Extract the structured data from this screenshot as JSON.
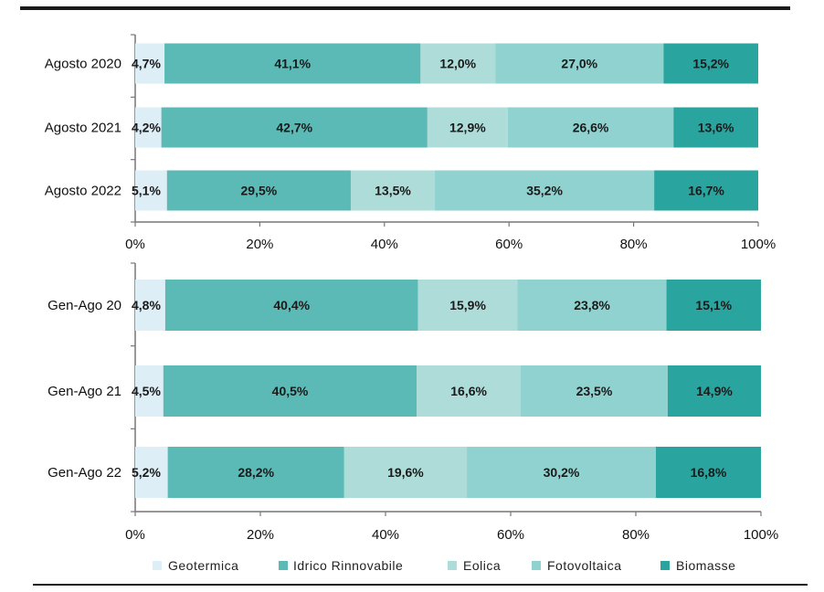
{
  "chart_data": [
    {
      "type": "bar",
      "orientation": "horizontal",
      "stacked": "percent",
      "categories": [
        "Agosto 2020",
        "Agosto 2021",
        "Agosto 2022"
      ],
      "series": [
        {
          "name": "Geotermica",
          "values": [
            4.7,
            4.2,
            5.1
          ],
          "labels": [
            "4,7%",
            "4,2%",
            "5,1%"
          ]
        },
        {
          "name": "Idrico Rinnovabile",
          "values": [
            41.1,
            42.7,
            29.5
          ],
          "labels": [
            "41,1%",
            "42,7%",
            "29,5%"
          ]
        },
        {
          "name": "Eolica",
          "values": [
            12.0,
            12.9,
            13.5
          ],
          "labels": [
            "12,0%",
            "12,9%",
            "13,5%"
          ]
        },
        {
          "name": "Fotovoltaica",
          "values": [
            27.0,
            26.6,
            35.2
          ],
          "labels": [
            "27,0%",
            "26,6%",
            "35,2%"
          ]
        },
        {
          "name": "Biomasse",
          "values": [
            15.2,
            13.6,
            16.7
          ],
          "labels": [
            "15,2%",
            "13,6%",
            "16,7%"
          ]
        }
      ],
      "x_ticks": [
        "0%",
        "20%",
        "40%",
        "60%",
        "80%",
        "100%"
      ],
      "xlim": [
        0,
        100
      ],
      "grid": false
    },
    {
      "type": "bar",
      "orientation": "horizontal",
      "stacked": "percent",
      "categories": [
        "Gen-Ago 20",
        "Gen-Ago 21",
        "Gen-Ago 22"
      ],
      "series": [
        {
          "name": "Geotermica",
          "values": [
            4.8,
            4.5,
            5.2
          ],
          "labels": [
            "4,8%",
            "4,5%",
            "5,2%"
          ]
        },
        {
          "name": "Idrico Rinnovabile",
          "values": [
            40.4,
            40.5,
            28.2
          ],
          "labels": [
            "40,4%",
            "40,5%",
            "28,2%"
          ]
        },
        {
          "name": "Eolica",
          "values": [
            15.9,
            16.6,
            19.6
          ],
          "labels": [
            "15,9%",
            "16,6%",
            "19,6%"
          ]
        },
        {
          "name": "Fotovoltaica",
          "values": [
            23.8,
            23.5,
            30.2
          ],
          "labels": [
            "23,8%",
            "23,5%",
            "30,2%"
          ]
        },
        {
          "name": "Biomasse",
          "values": [
            15.1,
            14.9,
            16.8
          ],
          "labels": [
            "15,1%",
            "14,9%",
            "16,8%"
          ]
        }
      ],
      "x_ticks": [
        "0%",
        "20%",
        "40%",
        "60%",
        "80%",
        "100%"
      ],
      "xlim": [
        0,
        100
      ],
      "grid": false
    }
  ],
  "legend": {
    "placement": "bottom",
    "items": [
      {
        "name": "Geotermica",
        "color": "#ddeef6"
      },
      {
        "name": "Idrico Rinnovabile",
        "color": "#5bbab6"
      },
      {
        "name": "Eolica",
        "color": "#aedcd9"
      },
      {
        "name": "Fotovoltaica",
        "color": "#8fd2cf"
      },
      {
        "name": "Biomasse",
        "color": "#2aa49e"
      }
    ]
  },
  "colors": {
    "Geotermica": "#ddeef6",
    "Idrico Rinnovabile": "#5bbab6",
    "Eolica": "#aedcd9",
    "Fotovoltaica": "#8fd2cf",
    "Biomasse": "#2aa49e",
    "axis": "#777777",
    "rule": "#1a1a1a"
  }
}
